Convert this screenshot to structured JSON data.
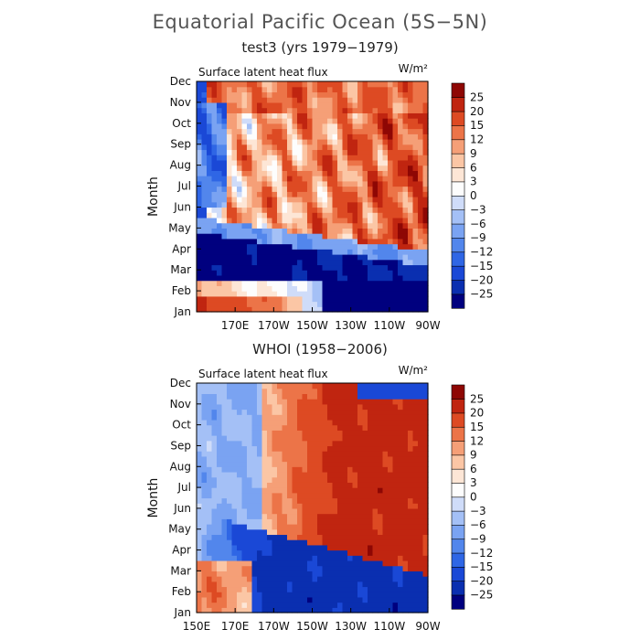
{
  "figure": {
    "title": "Equatorial Pacific Ocean (5S−5N)",
    "colors": [
      "#00007f",
      "#0a2fb0",
      "#1a48d6",
      "#2f66e5",
      "#5286ec",
      "#7aa3f2",
      "#a4c0f6",
      "#cfdcf9",
      "#fdfdfd",
      "#fde6d6",
      "#fbc6a5",
      "#f59f77",
      "#ec7448",
      "#dd4a23",
      "#c02510",
      "#8e0704"
    ]
  },
  "chart_data": [
    {
      "type": "heatmap",
      "title": "test3 (yrs 1979−1979)",
      "panel_label": "Surface latent heat flux",
      "units": "W/m²",
      "ylabel": "Month",
      "y_tick_labels": [
        "Jan",
        "Feb",
        "Mar",
        "Apr",
        "May",
        "Jun",
        "Jul",
        "Aug",
        "Sep",
        "Oct",
        "Nov",
        "Dec"
      ],
      "x_tick_labels": [
        "170E",
        "170W",
        "150W",
        "130W",
        "110W",
        "90W"
      ],
      "colorbar_labels": [
        "25",
        "20",
        "15",
        "12",
        "9",
        "6",
        "3",
        "0",
        "−3",
        "−6",
        "−9",
        "−12",
        "−15",
        "−20",
        "−25"
      ],
      "levels": [
        -25,
        -20,
        -15,
        -12,
        -9,
        -6,
        -3,
        0,
        3,
        6,
        9,
        12,
        15,
        20,
        25
      ],
      "x_range": [
        150,
        270
      ],
      "y_range": [
        1,
        12
      ]
    },
    {
      "type": "heatmap",
      "title": "WHOI (1958−2006)",
      "panel_label": "Surface latent heat flux",
      "units": "W/m²",
      "ylabel": "Month",
      "y_tick_labels": [
        "Jan",
        "Feb",
        "Mar",
        "Apr",
        "May",
        "Jun",
        "Jul",
        "Aug",
        "Sep",
        "Oct",
        "Nov",
        "Dec"
      ],
      "x_tick_labels": [
        "150E",
        "170E",
        "170W",
        "150W",
        "130W",
        "110W",
        "90W"
      ],
      "colorbar_labels": [
        "25",
        "20",
        "15",
        "12",
        "9",
        "6",
        "3",
        "0",
        "−3",
        "−6",
        "−9",
        "−12",
        "−15",
        "−20",
        "−25"
      ],
      "levels": [
        -25,
        -20,
        -15,
        -12,
        -9,
        -6,
        -3,
        0,
        3,
        6,
        9,
        12,
        15,
        20,
        25
      ],
      "x_range": [
        150,
        270
      ],
      "y_range": [
        1,
        12
      ]
    }
  ]
}
